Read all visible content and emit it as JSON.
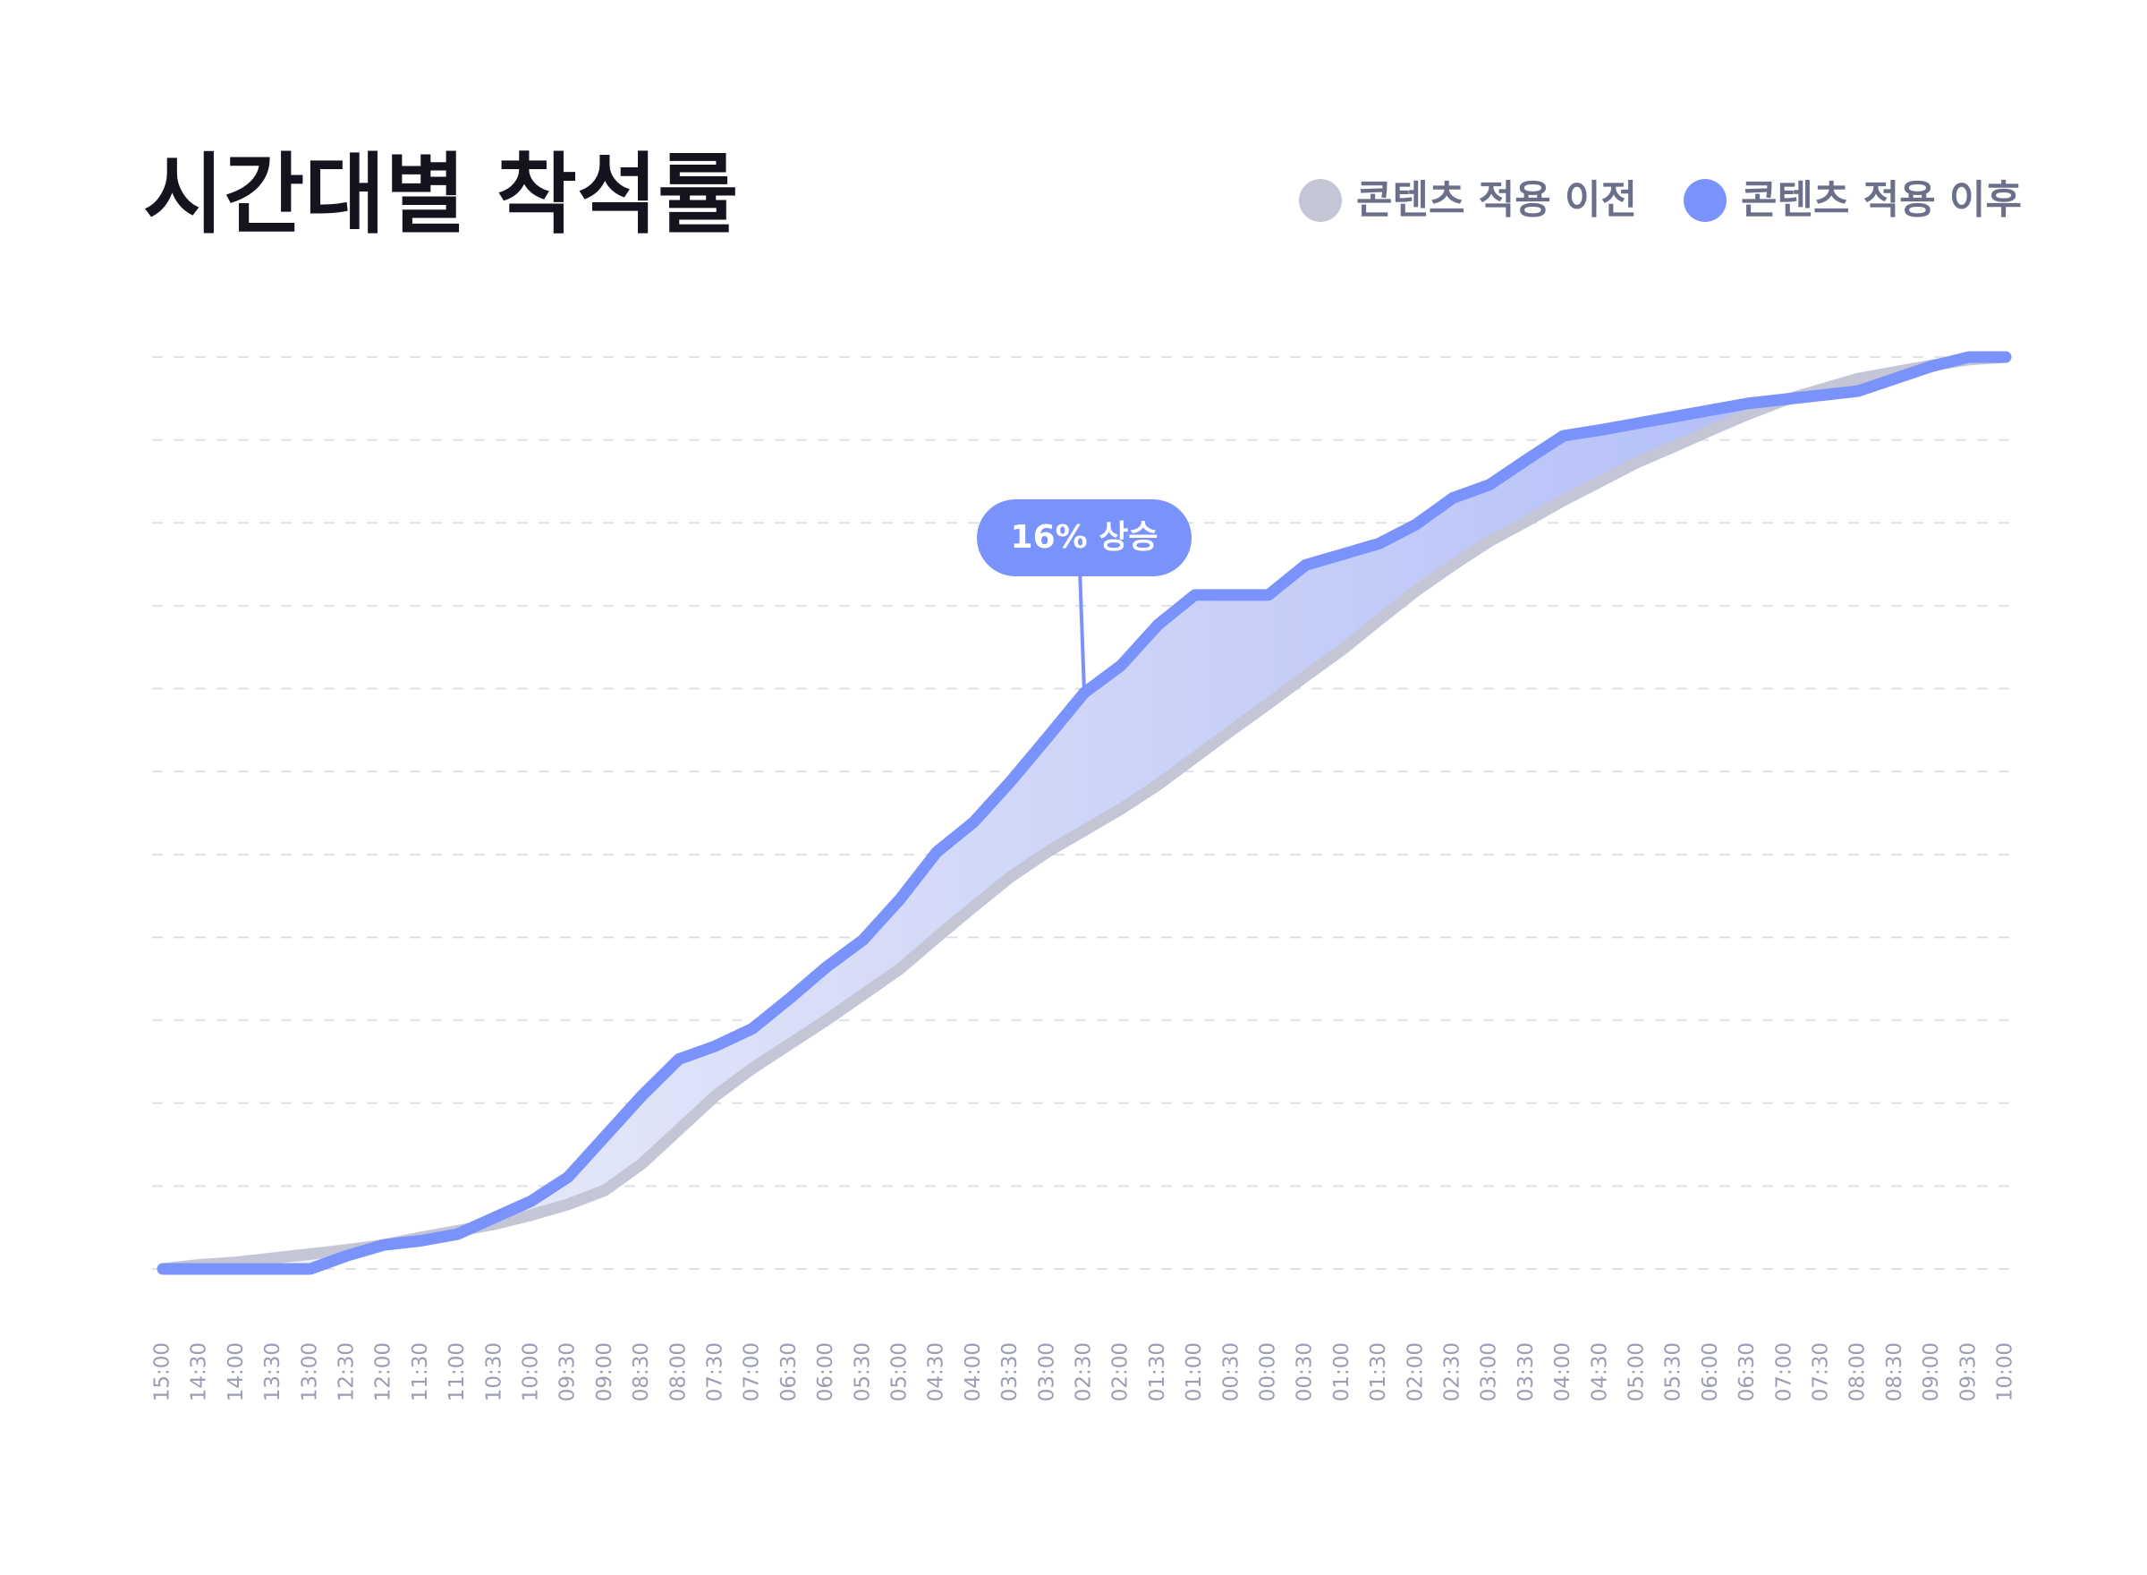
{
  "chart_data": {
    "type": "line",
    "title": "시간대별 착석률",
    "categories": [
      "15:00",
      "14:30",
      "14:00",
      "13:30",
      "13:00",
      "12:30",
      "12:00",
      "11:30",
      "11:00",
      "10:30",
      "10:00",
      "09:30",
      "09:00",
      "08:30",
      "08:00",
      "07:30",
      "07:00",
      "06:30",
      "06:00",
      "05:30",
      "05:00",
      "04:30",
      "04:00",
      "03:30",
      "03:00",
      "02:30",
      "02:00",
      "01:30",
      "01:00",
      "00:30",
      "00:00",
      "00:30",
      "01:00",
      "01:30",
      "02:00",
      "02:30",
      "03:00",
      "03:30",
      "04:00",
      "04:30",
      "05:00",
      "05:30",
      "06:00",
      "06:30",
      "07:00",
      "07:30",
      "08:00",
      "08:30",
      "09:00",
      "09:30",
      "10:00"
    ],
    "series": [
      {
        "name": "콘텐츠 적용 이전",
        "color": "#c4c6d6",
        "values": [
          0,
          0.5,
          0.8,
          1.3,
          1.8,
          2.3,
          2.9,
          3.8,
          4.6,
          5.4,
          6.5,
          7.8,
          9.5,
          12.7,
          16.8,
          20.9,
          24.2,
          27.1,
          30,
          33.1,
          36.2,
          40,
          43.7,
          47.3,
          50.3,
          52.9,
          55.5,
          58.4,
          61.7,
          65,
          68.2,
          71.5,
          74.7,
          78.3,
          81.8,
          84.9,
          87.8,
          90.2,
          92.7,
          95,
          97.3,
          99.2,
          101.2,
          103.1,
          104.8,
          106.1,
          107.4,
          108.2,
          109,
          109.7,
          110
        ]
      },
      {
        "name": "콘텐츠 적용 이후",
        "color": "#7a92fb",
        "values": [
          0,
          0,
          0,
          0,
          0,
          1.6,
          2.9,
          3.4,
          4.2,
          6.2,
          8.2,
          11.1,
          16,
          20.9,
          25.3,
          26.9,
          29,
          32.6,
          36.4,
          39.7,
          44.6,
          50.3,
          53.9,
          58.8,
          64.1,
          69.5,
          72.8,
          77.7,
          81.3,
          81.3,
          81.3,
          84.9,
          86.2,
          87.5,
          89.8,
          93,
          94.6,
          97.6,
          100.5,
          101.2,
          102,
          102.8,
          103.6,
          104.4,
          104.9,
          105.4,
          105.9,
          107.4,
          108.9,
          110,
          110
        ]
      }
    ],
    "ylim": [
      0,
      110
    ],
    "gridlines": [
      0,
      10,
      20,
      30,
      40,
      50,
      60,
      70,
      80,
      90,
      100,
      110
    ],
    "grid": true,
    "annotation": {
      "text": "16% 상승",
      "index": 25,
      "series": 1
    }
  }
}
